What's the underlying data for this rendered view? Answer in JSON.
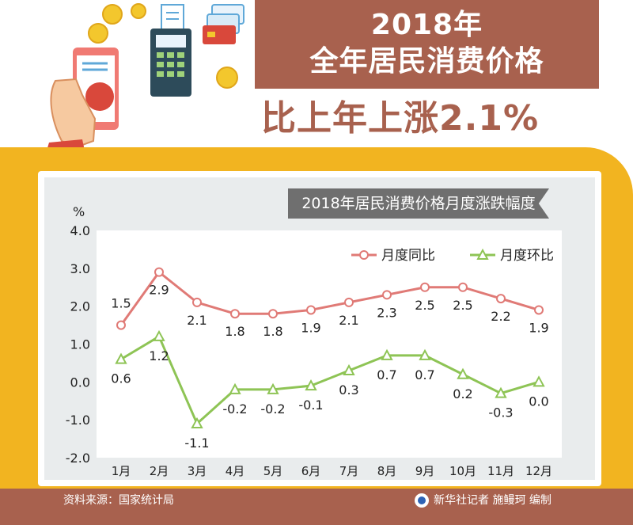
{
  "header": {
    "title_line1": "2018年",
    "title_line2": "全年居民消费价格",
    "subtitle": "比上年上涨2.1%"
  },
  "footer": {
    "source": "资料来源：国家统计局",
    "credit": "新华社记者 施鳗珂 编制"
  },
  "colors": {
    "brand": "#a8614e",
    "gold": "#f2b420",
    "yoy": "#e07a76",
    "mom": "#8ec455"
  },
  "chart_data": {
    "type": "line",
    "title": "2018年居民消费价格月度涨跌幅度",
    "ylabel": "%",
    "xlabel": "",
    "ylim": [
      -2.0,
      4.0
    ],
    "yticks": [
      "4.0",
      "3.0",
      "2.0",
      "1.0",
      "0.0",
      "-1.0",
      "-2.0"
    ],
    "grid": false,
    "legend": "top-right",
    "categories": [
      "1月",
      "2月",
      "3月",
      "4月",
      "5月",
      "6月",
      "7月",
      "8月",
      "9月",
      "10月",
      "11月",
      "12月"
    ],
    "series": [
      {
        "name": "月度同比",
        "marker": "circle",
        "values": [
          1.5,
          2.9,
          2.1,
          1.8,
          1.8,
          1.9,
          2.1,
          2.3,
          2.5,
          2.5,
          2.2,
          1.9
        ],
        "labels": [
          "1.5",
          "2.9",
          "2.1",
          "1.8",
          "1.8",
          "1.9",
          "2.1",
          "2.3",
          "2.5",
          "2.5",
          "2.2",
          "1.9"
        ]
      },
      {
        "name": "月度环比",
        "marker": "triangle",
        "values": [
          0.6,
          1.2,
          -1.1,
          -0.2,
          -0.2,
          -0.1,
          0.3,
          0.7,
          0.7,
          0.2,
          -0.3,
          0.0
        ],
        "labels": [
          "0.6",
          "1.2",
          "-1.1",
          "-0.2",
          "-0.2",
          "-0.1",
          "0.3",
          "0.7",
          "0.7",
          "0.2",
          "-0.3",
          "0.0"
        ]
      }
    ]
  }
}
